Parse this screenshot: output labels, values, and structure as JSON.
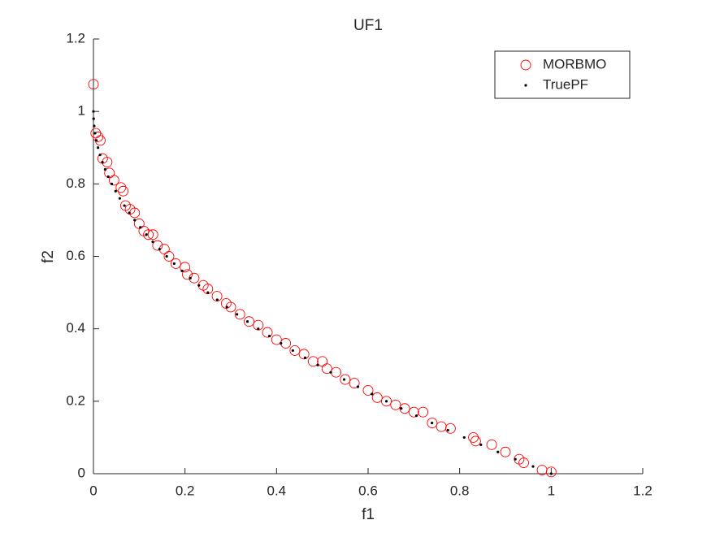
{
  "chart_data": {
    "type": "scatter",
    "title": "UF1",
    "x_label": "f1",
    "y_label": "f2",
    "xlim": [
      0,
      1.2
    ],
    "ylim": [
      0,
      1.2
    ],
    "xticks": [
      0,
      0.2,
      0.4,
      0.6,
      0.8,
      1,
      1.2
    ],
    "yticks": [
      0,
      0.2,
      0.4,
      0.6,
      0.8,
      1,
      1.2
    ],
    "legend_position": "upper-right",
    "series": [
      {
        "name": "MORBMO",
        "color": "#ff0000",
        "marker": "circle",
        "x": [
          0,
          0.005,
          0.01,
          0.015,
          0.02,
          0.03,
          0.035,
          0.045,
          0.06,
          0.065,
          0.07,
          0.08,
          0.09,
          0.1,
          0.11,
          0.12,
          0.13,
          0.14,
          0.155,
          0.165,
          0.18,
          0.2,
          0.205,
          0.22,
          0.24,
          0.25,
          0.27,
          0.29,
          0.3,
          0.32,
          0.34,
          0.36,
          0.38,
          0.4,
          0.42,
          0.44,
          0.46,
          0.48,
          0.5,
          0.51,
          0.53,
          0.55,
          0.57,
          0.6,
          0.62,
          0.64,
          0.66,
          0.68,
          0.7,
          0.72,
          0.74,
          0.76,
          0.78,
          0.83,
          0.835,
          0.87,
          0.9,
          0.93,
          0.94,
          0.98,
          1
        ],
        "values": [
          1.075,
          0.94,
          0.93,
          0.92,
          0.87,
          0.86,
          0.83,
          0.81,
          0.79,
          0.78,
          0.74,
          0.73,
          0.72,
          0.69,
          0.67,
          0.66,
          0.66,
          0.63,
          0.62,
          0.6,
          0.58,
          0.57,
          0.55,
          0.54,
          0.52,
          0.51,
          0.49,
          0.47,
          0.46,
          0.44,
          0.42,
          0.41,
          0.39,
          0.37,
          0.36,
          0.34,
          0.33,
          0.31,
          0.31,
          0.29,
          0.28,
          0.26,
          0.25,
          0.23,
          0.21,
          0.2,
          0.19,
          0.18,
          0.17,
          0.17,
          0.14,
          0.13,
          0.125,
          0.1,
          0.09,
          0.08,
          0.06,
          0.04,
          0.03,
          0.01,
          0.005
        ]
      },
      {
        "name": "TruePF",
        "color": "#000000",
        "marker": "dot",
        "x": [
          0,
          0.0004,
          0.0016,
          0.0036,
          0.0064,
          0.01,
          0.0144,
          0.0196,
          0.0256,
          0.0324,
          0.04,
          0.0484,
          0.0576,
          0.0676,
          0.0784,
          0.09,
          0.1024,
          0.1156,
          0.1296,
          0.1444,
          0.16,
          0.1764,
          0.1936,
          0.2116,
          0.2304,
          0.25,
          0.2704,
          0.2916,
          0.3136,
          0.3364,
          0.36,
          0.3844,
          0.4096,
          0.4356,
          0.4624,
          0.49,
          0.5184,
          0.5476,
          0.5776,
          0.6084,
          0.64,
          0.6724,
          0.7056,
          0.7396,
          0.7744,
          0.81,
          0.8464,
          0.8836,
          0.9216,
          0.9604,
          1
        ],
        "values": [
          1,
          0.98,
          0.96,
          0.94,
          0.92,
          0.9,
          0.88,
          0.86,
          0.84,
          0.82,
          0.8,
          0.78,
          0.76,
          0.74,
          0.72,
          0.7,
          0.68,
          0.66,
          0.64,
          0.62,
          0.6,
          0.58,
          0.56,
          0.54,
          0.52,
          0.5,
          0.48,
          0.46,
          0.44,
          0.42,
          0.4,
          0.38,
          0.36,
          0.34,
          0.32,
          0.3,
          0.28,
          0.26,
          0.24,
          0.22,
          0.2,
          0.18,
          0.16,
          0.14,
          0.12,
          0.1,
          0.08,
          0.06,
          0.04,
          0.02,
          0
        ]
      }
    ]
  }
}
